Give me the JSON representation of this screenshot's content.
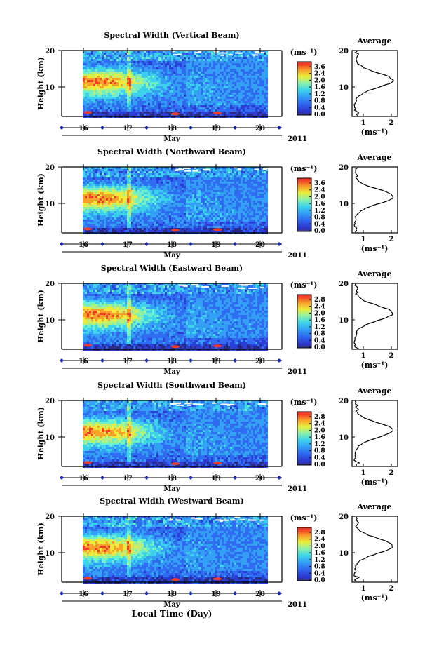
{
  "chart_data": [
    {
      "type": "heatmap",
      "title": "Spectral Width (Vertical Beam)",
      "ylabel": "Height (km)",
      "y_ticks": [
        "20",
        "10"
      ],
      "x_ticks": [
        "16",
        "17",
        "18",
        "19",
        "20"
      ],
      "x_month": "May",
      "x_year": "2011",
      "colorbar_unit": "(ms⁻¹)",
      "colorbar_ticks": [
        "3.6",
        "2.4",
        "2.0",
        "1.6",
        "1.2",
        "0.8",
        "0.4",
        "0.0"
      ],
      "avg_title": "Average",
      "avg_y_ticks": [
        "20",
        "10"
      ],
      "avg_x_ticks": [
        "1",
        "2"
      ],
      "avg_xlabel": "(ms⁻¹)"
    },
    {
      "type": "heatmap",
      "title": "Spectral Width (Northward Beam)",
      "ylabel": "Height (km)",
      "y_ticks": [
        "20",
        "10"
      ],
      "x_ticks": [
        "16",
        "17",
        "18",
        "19",
        "20"
      ],
      "x_month": "May",
      "x_year": "2011",
      "colorbar_unit": "(ms⁻¹)",
      "colorbar_ticks": [
        "3.6",
        "2.4",
        "2.0",
        "1.6",
        "1.2",
        "0.8",
        "0.4",
        "0.0"
      ],
      "avg_title": "Average",
      "avg_y_ticks": [
        "20",
        "10"
      ],
      "avg_x_ticks": [
        "1",
        "2"
      ],
      "avg_xlabel": "(ms⁻¹)"
    },
    {
      "type": "heatmap",
      "title": "Spectral Width (Eastward Beam)",
      "ylabel": "Height (km)",
      "y_ticks": [
        "20",
        "10"
      ],
      "x_ticks": [
        "16",
        "17",
        "18",
        "19",
        "20"
      ],
      "x_month": "May",
      "x_year": "2011",
      "colorbar_unit": "(ms⁻¹)",
      "colorbar_ticks": [
        "2.8",
        "2.4",
        "2.0",
        "1.6",
        "1.2",
        "0.8",
        "0.4",
        "0.0"
      ],
      "avg_title": "Average",
      "avg_y_ticks": [
        "20",
        "10"
      ],
      "avg_x_ticks": [
        "1",
        "2"
      ],
      "avg_xlabel": "(ms⁻¹)"
    },
    {
      "type": "heatmap",
      "title": "Spectral Width (Southward Beam)",
      "ylabel": "Height (km)",
      "y_ticks": [
        "20",
        "10"
      ],
      "x_ticks": [
        "16",
        "17",
        "18",
        "19",
        "20"
      ],
      "x_month": "May",
      "x_year": "2011",
      "colorbar_unit": "(ms⁻¹)",
      "colorbar_ticks": [
        "2.8",
        "2.4",
        "2.0",
        "1.6",
        "1.2",
        "0.8",
        "0.4",
        "0.0"
      ],
      "avg_title": "Average",
      "avg_y_ticks": [
        "20",
        "10"
      ],
      "avg_x_ticks": [
        "1",
        "2"
      ],
      "avg_xlabel": "(ms⁻¹)"
    },
    {
      "type": "heatmap",
      "title": "Spectral Width (Westward Beam)",
      "ylabel": "Height (km)",
      "y_ticks": [
        "20",
        "10"
      ],
      "x_ticks": [
        "16",
        "17",
        "18",
        "19",
        "20"
      ],
      "x_month": "May",
      "x_year": "2011",
      "colorbar_unit": "(ms⁻¹)",
      "colorbar_ticks": [
        "2.8",
        "2.4",
        "2.0",
        "1.6",
        "1.2",
        "0.8",
        "0.4",
        "0.0"
      ],
      "avg_title": "Average",
      "avg_y_ticks": [
        "20",
        "10"
      ],
      "avg_x_ticks": [
        "1",
        "2"
      ],
      "avg_xlabel": "(ms⁻¹)"
    }
  ],
  "footer": {
    "xlabel": "Local Time (Day)"
  },
  "colors": {
    "colormap": [
      "#2a2a80",
      "#2b3fd6",
      "#2f6cf2",
      "#33a0f5",
      "#3cd2ec",
      "#6ff0c8",
      "#b4f07a",
      "#f0ea3a",
      "#f8a128",
      "#f23c2a"
    ]
  }
}
